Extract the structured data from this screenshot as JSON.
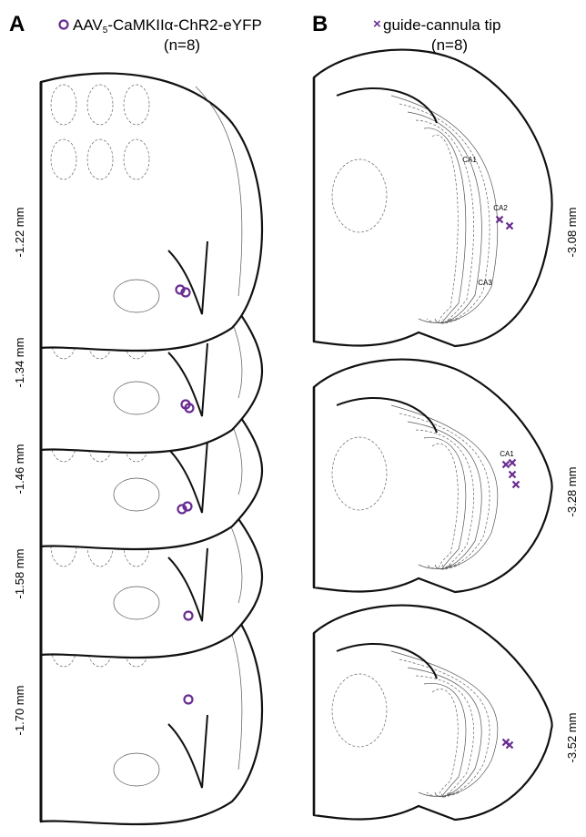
{
  "panel_a": {
    "letter": "A",
    "legend": {
      "prefix": "AAV",
      "subscript": "5",
      "suffix": "-CaMKIIα-ChR2-eYFP",
      "n": "(n=8)"
    },
    "sections": [
      "-1.22 mm",
      "-1.34 mm",
      "-1.46 mm",
      "-1.58 mm",
      "-1.70 mm"
    ]
  },
  "panel_b": {
    "letter": "B",
    "legend": {
      "symbol": "×",
      "label": "guide-cannula tip",
      "n": "(n=8)"
    },
    "sections": [
      "-3.08 mm",
      "-3.28 mm",
      "-3.52 mm"
    ],
    "regions": [
      "CA1",
      "CA2",
      "CA3",
      "CA1"
    ]
  }
}
